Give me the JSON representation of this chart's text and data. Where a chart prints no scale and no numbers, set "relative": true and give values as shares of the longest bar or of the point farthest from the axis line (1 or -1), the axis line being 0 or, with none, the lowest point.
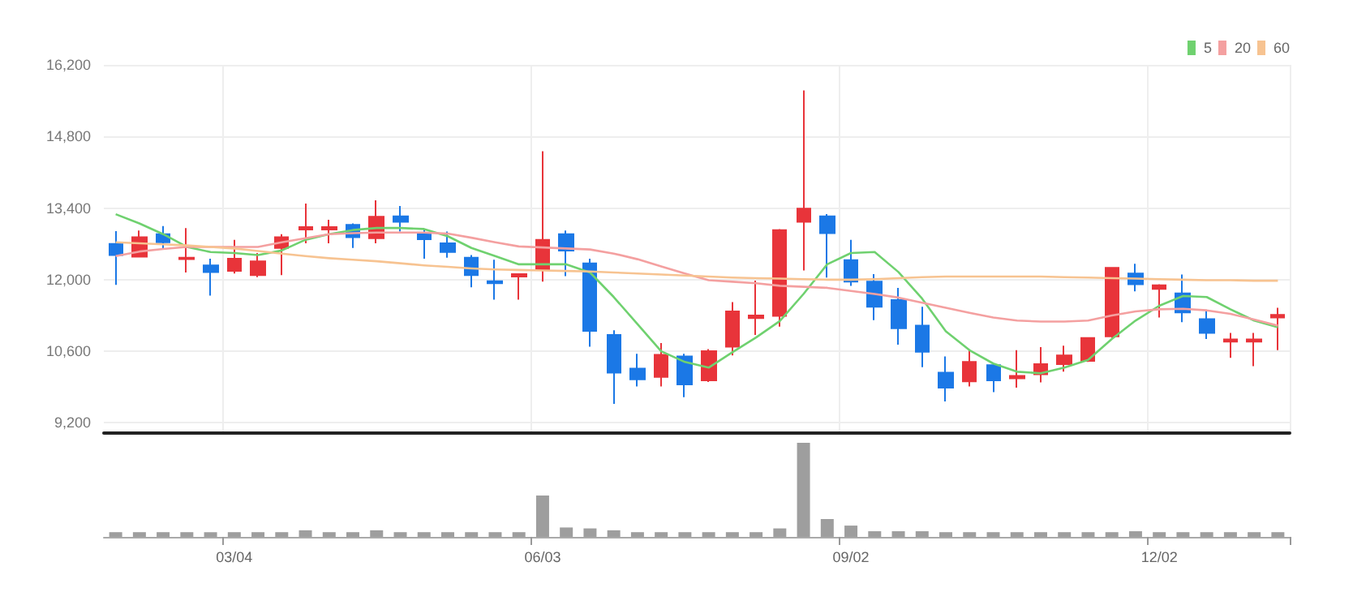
{
  "chart_data": [
    {
      "type": "candlestick",
      "categories": [
        null,
        null,
        null,
        null,
        null,
        null,
        null,
        null,
        null,
        null,
        null,
        null,
        null,
        null,
        null,
        null,
        null,
        null,
        null,
        null,
        null,
        null,
        null,
        null,
        null,
        null,
        null,
        null,
        null,
        null,
        null,
        null,
        null,
        null,
        null,
        null,
        null,
        null,
        null,
        null,
        null,
        null,
        null,
        null,
        null,
        null,
        null,
        null,
        null,
        null
      ],
      "ohlc": [
        [
          12700,
          12950,
          11900,
          12480
        ],
        [
          12450,
          12960,
          12450,
          12830
        ],
        [
          12890,
          13050,
          12600,
          12730
        ],
        [
          12400,
          13010,
          12140,
          12430
        ],
        [
          12280,
          12410,
          11690,
          12150
        ],
        [
          12170,
          12780,
          12120,
          12410
        ],
        [
          12090,
          12520,
          12050,
          12360
        ],
        [
          12620,
          12890,
          12090,
          12830
        ],
        [
          12980,
          13490,
          12710,
          13030
        ],
        [
          12980,
          13170,
          12710,
          13030
        ],
        [
          13070,
          13100,
          12620,
          12830
        ],
        [
          12810,
          13550,
          12710,
          13230
        ],
        [
          13240,
          13440,
          12940,
          13130
        ],
        [
          12910,
          12990,
          12410,
          12790
        ],
        [
          12710,
          12940,
          12430,
          12540
        ],
        [
          12430,
          12480,
          11850,
          12090
        ],
        [
          11970,
          12390,
          11610,
          11930
        ],
        [
          12060,
          12110,
          11610,
          12110
        ],
        [
          12200,
          14510,
          11960,
          12780
        ],
        [
          12890,
          12960,
          12070,
          12570
        ],
        [
          12320,
          12410,
          10690,
          11000
        ],
        [
          10920,
          11010,
          9570,
          10180
        ],
        [
          10260,
          10550,
          9910,
          10050
        ],
        [
          10100,
          10760,
          9910,
          10530
        ],
        [
          10500,
          10550,
          9700,
          9950
        ],
        [
          10030,
          10640,
          10000,
          10600
        ],
        [
          10690,
          11560,
          10520,
          11380
        ],
        [
          11250,
          11980,
          10920,
          11300
        ],
        [
          11290,
          12990,
          11080,
          12970
        ],
        [
          13130,
          15700,
          12180,
          13390
        ],
        [
          13240,
          13280,
          12040,
          12910
        ],
        [
          12380,
          12780,
          11880,
          11960
        ],
        [
          11960,
          12110,
          11210,
          11470
        ],
        [
          11600,
          11840,
          10730,
          11050
        ],
        [
          11100,
          11470,
          10290,
          10590
        ],
        [
          10180,
          10500,
          9620,
          9890
        ],
        [
          10010,
          10620,
          9910,
          10390
        ],
        [
          10330,
          10360,
          9800,
          10030
        ],
        [
          10070,
          10620,
          9890,
          10120
        ],
        [
          10150,
          10680,
          9990,
          10350
        ],
        [
          10350,
          10710,
          10200,
          10520
        ],
        [
          10410,
          10860,
          10390,
          10860
        ],
        [
          10890,
          12230,
          10860,
          12230
        ],
        [
          12120,
          12310,
          11770,
          11910
        ],
        [
          11820,
          11910,
          11260,
          11890
        ],
        [
          11730,
          12100,
          11170,
          11360
        ],
        [
          11230,
          11390,
          10840,
          10960
        ],
        [
          10790,
          10960,
          10470,
          10830
        ],
        [
          10790,
          10960,
          10310,
          10830
        ],
        [
          11260,
          11450,
          10620,
          11310
        ]
      ],
      "series": [
        {
          "name": "5",
          "type": "line",
          "color": "#6fd16f",
          "values": [
            13280,
            13100,
            12890,
            12640,
            12540,
            12520,
            12480,
            12570,
            12780,
            12890,
            12970,
            13010,
            13010,
            12990,
            12850,
            12620,
            12460,
            12300,
            12300,
            12300,
            12140,
            11660,
            11130,
            10600,
            10390,
            10280,
            10580,
            10870,
            11190,
            11720,
            12300,
            12520,
            12540,
            12150,
            11630,
            10990,
            10620,
            10360,
            10200,
            10170,
            10280,
            10430,
            10840,
            11200,
            11490,
            11680,
            11660,
            11420,
            11200,
            11070
          ]
        },
        {
          "name": "20",
          "type": "line",
          "color": "#f4a0a0",
          "values": [
            12460,
            12550,
            12600,
            12640,
            12640,
            12640,
            12640,
            12730,
            12810,
            12890,
            12910,
            12920,
            12920,
            12920,
            12900,
            12820,
            12730,
            12650,
            12630,
            12610,
            12590,
            12510,
            12400,
            12260,
            12120,
            11990,
            11960,
            11930,
            11880,
            11860,
            11840,
            11780,
            11720,
            11650,
            11550,
            11450,
            11350,
            11260,
            11200,
            11180,
            11180,
            11200,
            11300,
            11380,
            11420,
            11430,
            11400,
            11330,
            11220,
            11100
          ]
        },
        {
          "name": "60",
          "type": "line",
          "color": "#f7c391",
          "values": [
            12730,
            12710,
            12690,
            12670,
            12640,
            12610,
            12560,
            12510,
            12460,
            12420,
            12390,
            12360,
            12320,
            12280,
            12250,
            12220,
            12200,
            12190,
            12180,
            12170,
            12160,
            12140,
            12120,
            12100,
            12080,
            12060,
            12040,
            12030,
            12020,
            12010,
            12000,
            12000,
            12010,
            12030,
            12050,
            12060,
            12060,
            12060,
            12060,
            12060,
            12050,
            12040,
            12030,
            12020,
            12010,
            12000,
            11990,
            11990,
            11980,
            11980
          ]
        }
      ],
      "ylim": [
        9000,
        16200
      ],
      "yticks": [
        {
          "value": 9200,
          "label": "9,200"
        },
        {
          "value": 10600,
          "label": "10,600"
        },
        {
          "value": 12000,
          "label": "12,000"
        },
        {
          "value": 13400,
          "label": "13,400"
        },
        {
          "value": 14800,
          "label": "14,800"
        },
        {
          "value": 16200,
          "label": "16,200"
        }
      ],
      "grid": true,
      "legend": "top right",
      "marker": "none",
      "tick_labels": "y"
    },
    {
      "type": "bar",
      "relative": true,
      "color": "#9e9e9e",
      "categories": [
        null,
        null,
        null,
        null,
        null,
        "03/04",
        null,
        null,
        null,
        null,
        null,
        null,
        null,
        null,
        null,
        null,
        null,
        null,
        "06/03",
        null,
        null,
        null,
        null,
        null,
        null,
        null,
        null,
        null,
        null,
        null,
        null,
        "09/02",
        null,
        null,
        null,
        null,
        null,
        null,
        null,
        null,
        null,
        null,
        null,
        null,
        "12/02",
        null,
        null,
        null,
        null,
        null
      ],
      "values": [
        0.05,
        0.05,
        0.05,
        0.05,
        0.05,
        0.05,
        0.05,
        0.05,
        0.07,
        0.05,
        0.05,
        0.07,
        0.05,
        0.05,
        0.05,
        0.05,
        0.05,
        0.05,
        0.44,
        0.1,
        0.09,
        0.07,
        0.05,
        0.05,
        0.05,
        0.05,
        0.05,
        0.05,
        0.09,
        1,
        0.19,
        0.12,
        0.06,
        0.06,
        0.06,
        0.05,
        0.05,
        0.05,
        0.05,
        0.05,
        0.05,
        0.05,
        0.05,
        0.06,
        0.05,
        0.05,
        0.05,
        0.05,
        0.05,
        0.05
      ],
      "tick_labels": "x"
    }
  ]
}
